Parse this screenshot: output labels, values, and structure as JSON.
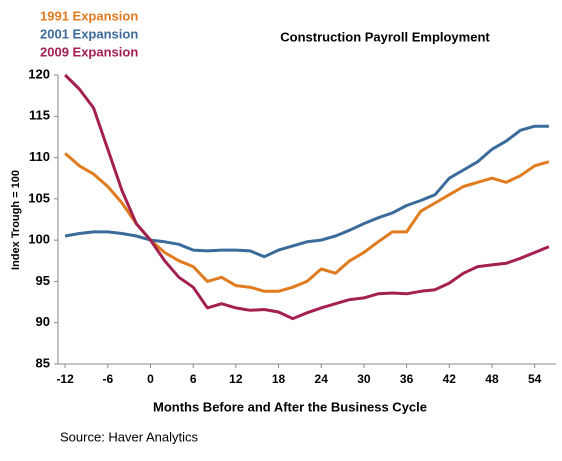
{
  "chart_data": {
    "type": "line",
    "title": "Construction Payroll Employment",
    "x_label": "Months Before and After the Business Cycle",
    "y_label": "Index Trough = 100",
    "source": "Source: Haver Analytics",
    "x": [
      -12,
      -10,
      -8,
      -6,
      -4,
      -2,
      0,
      2,
      4,
      6,
      8,
      10,
      12,
      14,
      16,
      18,
      20,
      22,
      24,
      26,
      28,
      30,
      32,
      34,
      36,
      38,
      40,
      42,
      44,
      46,
      48,
      50,
      52,
      54,
      56
    ],
    "series": [
      {
        "name": "1991 Expansion",
        "color": "#e07b20",
        "values": [
          110.5,
          109,
          108,
          106.5,
          104.5,
          102,
          100,
          98.5,
          97.5,
          96.8,
          95,
          95.5,
          94.5,
          94.3,
          93.8,
          93.8,
          94.3,
          95,
          96.5,
          96,
          97.5,
          98.5,
          99.8,
          101,
          101,
          103.5,
          104.5,
          105.5,
          106.5,
          107,
          107.5,
          107,
          107.8,
          109,
          109.5
        ]
      },
      {
        "name": "2001 Expansion",
        "color": "#3a6b9a",
        "values": [
          100.5,
          100.8,
          101,
          101,
          100.8,
          100.5,
          100,
          99.8,
          99.5,
          98.8,
          98.7,
          98.8,
          98.8,
          98.7,
          98,
          98.8,
          99.3,
          99.8,
          100,
          100.5,
          101.2,
          102,
          102.7,
          103.3,
          104.2,
          104.8,
          105.5,
          107.5,
          108.5,
          109.5,
          111,
          112,
          113.3,
          113.8,
          113.8
        ]
      },
      {
        "name": "2009 Expansion",
        "color": "#a3204f",
        "values": [
          120,
          118.3,
          116,
          111,
          106,
          102,
          100,
          97.5,
          95.5,
          94.3,
          91.8,
          92.3,
          91.8,
          91.5,
          91.6,
          91.3,
          90.5,
          91.2,
          91.8,
          92.3,
          92.8,
          93,
          93.5,
          93.6,
          93.5,
          93.8,
          94,
          94.8,
          96,
          96.8,
          97,
          97.2,
          97.8,
          98.5,
          99.2
        ]
      }
    ],
    "xlim": [
      -13,
      57
    ],
    "xticks": [
      -12,
      -6,
      0,
      6,
      12,
      18,
      24,
      30,
      36,
      42,
      48,
      54
    ],
    "ylim": [
      85,
      120
    ],
    "yticks": [
      85,
      90,
      95,
      100,
      105,
      110,
      115,
      120
    ],
    "grid": false
  }
}
